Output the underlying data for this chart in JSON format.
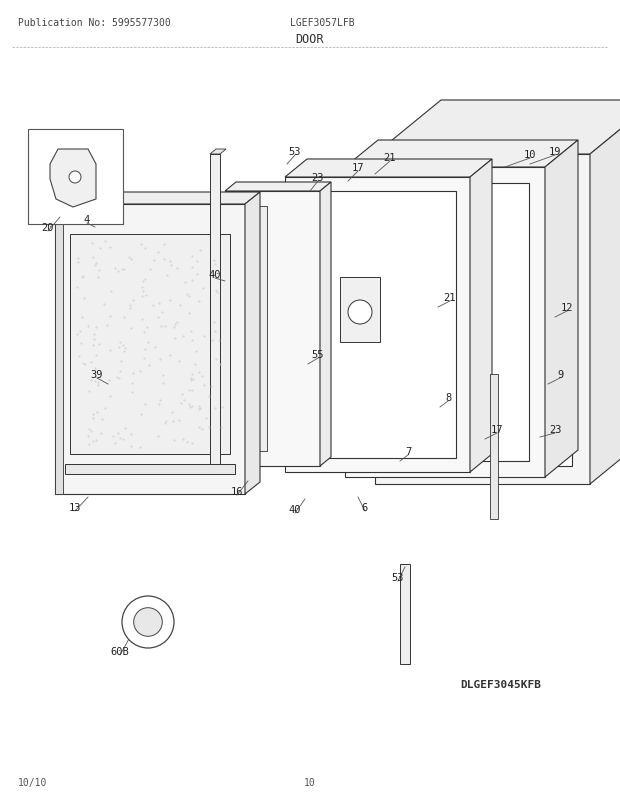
{
  "pub_no": "Publication No: 5995577300",
  "model": "LGEF3057LFB",
  "section": "DOOR",
  "diagram_id": "DLGEF3045KFB",
  "date": "10/10",
  "page": "10",
  "bg_color": "#ffffff",
  "lc": "#333333",
  "lc_thin": "#555555",
  "text_color": "#222222"
}
